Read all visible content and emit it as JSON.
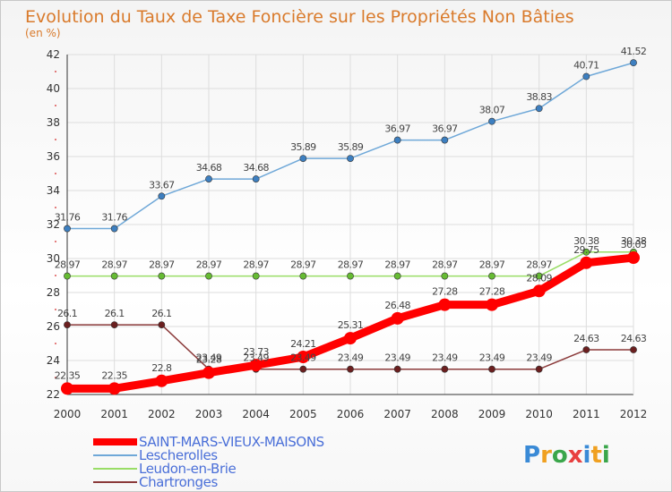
{
  "chart_data": {
    "type": "line",
    "title": "Evolution du Taux de Taxe Foncière sur les Propriétés Non Bâties",
    "ylabel": "(en %)",
    "xlabel": "",
    "categories": [
      "2000",
      "2001",
      "2002",
      "2003",
      "2004",
      "2005",
      "2006",
      "2007",
      "2008",
      "2009",
      "2010",
      "2011",
      "2012"
    ],
    "ylim": [
      22,
      42
    ],
    "yticks": [
      22,
      24,
      26,
      28,
      30,
      32,
      34,
      36,
      38,
      40,
      42
    ],
    "grid": true,
    "legend_position": "bottom-left",
    "series": [
      {
        "name": "Lescherolles",
        "color": "#6fa8d8",
        "marker": "#3d7fc0",
        "values": [
          31.76,
          31.76,
          33.67,
          34.68,
          34.68,
          35.89,
          35.89,
          36.97,
          36.97,
          38.07,
          38.83,
          40.71,
          41.52
        ],
        "labels": [
          "31.76",
          "31.76",
          "33.67",
          "34.68",
          "34.68",
          "35.89",
          "35.89",
          "36.97",
          "36.97",
          "38.07",
          "38.83",
          "40.71",
          "41.52"
        ]
      },
      {
        "name": "Leudon-en-Brie",
        "color": "#99dd66",
        "marker": "#66bb33",
        "values": [
          28.97,
          28.97,
          28.97,
          28.97,
          28.97,
          28.97,
          28.97,
          28.97,
          28.97,
          28.97,
          28.97,
          30.38,
          30.38
        ],
        "labels": [
          "28.97",
          "28.97",
          "28.97",
          "28.97",
          "28.97",
          "28.97",
          "28.97",
          "28.97",
          "28.97",
          "28.97",
          "28.97",
          "30.38",
          "30.38"
        ]
      },
      {
        "name": "Chartronges",
        "color": "#8b3a3a",
        "marker": "#6b1f1f",
        "values": [
          26.1,
          26.1,
          26.1,
          23.49,
          23.49,
          23.49,
          23.49,
          23.49,
          23.49,
          23.49,
          23.49,
          24.63,
          24.63
        ],
        "labels": [
          "26.1",
          "26.1",
          "26.1",
          "23.49",
          "23.49",
          "23.49",
          "23.49",
          "23.49",
          "23.49",
          "23.49",
          "23.49",
          "24.63",
          "24.63"
        ]
      },
      {
        "name": "SAINT-MARS-VIEUX-MAISONS",
        "color": "#ff0000",
        "marker": "#ff0000",
        "values": [
          22.35,
          22.35,
          22.8,
          23.28,
          23.73,
          24.21,
          25.31,
          26.48,
          27.28,
          27.28,
          28.09,
          29.75,
          30.05
        ],
        "labels": [
          "22.35",
          "22.35",
          "22.8",
          "23.28",
          "23.73",
          "24.21",
          "25.31",
          "26.48",
          "27.28",
          "27.28",
          "28.09",
          "29.75",
          "30.05"
        ]
      }
    ]
  },
  "legend": [
    {
      "name": "SAINT-MARS-VIEUX-MAISONS",
      "color": "#ff0000"
    },
    {
      "name": "Lescherolles",
      "color": "#6fa8d8"
    },
    {
      "name": "Leudon-en-Brie",
      "color": "#99dd66"
    },
    {
      "name": "Chartronges",
      "color": "#8b3a3a"
    }
  ],
  "brand": {
    "letters": [
      "P",
      "r",
      "o",
      "x",
      "i",
      "t",
      "i"
    ],
    "colors": [
      "#3a8ad6",
      "#f0a020",
      "#3aa64a",
      "#e84040",
      "#3a8ad6",
      "#f0a020",
      "#3aa64a"
    ]
  }
}
